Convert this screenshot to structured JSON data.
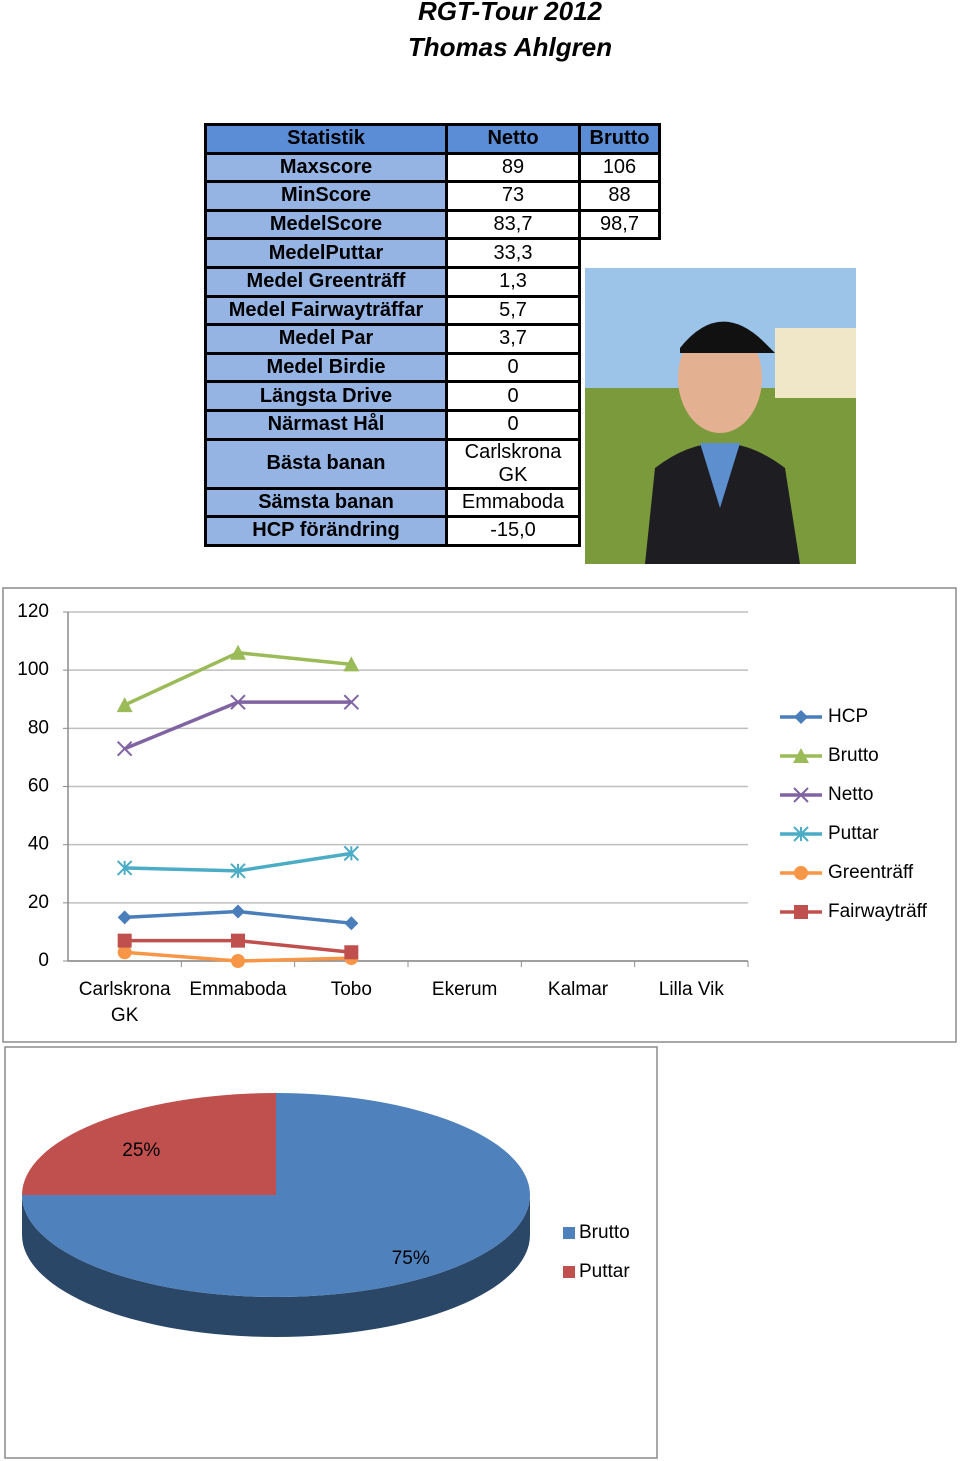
{
  "header": {
    "title": "RGT-Tour 2012",
    "subtitle": "Thomas Ahlgren"
  },
  "table": {
    "header": [
      "Statistik",
      "Netto",
      "Brutto"
    ],
    "rows": [
      [
        "Maxscore",
        "89",
        "106"
      ],
      [
        "MinScore",
        "73",
        "88"
      ],
      [
        "MedelScore",
        "83,7",
        "98,7"
      ],
      [
        "MedelPuttar",
        "33,3"
      ],
      [
        "Medel Greenträff",
        "1,3"
      ],
      [
        "Medel Fairwayträffar",
        "5,7"
      ],
      [
        "Medel Par",
        "3,7"
      ],
      [
        "Medel Birdie",
        "0"
      ],
      [
        "Längsta Drive",
        "0"
      ],
      [
        "Närmast Hål",
        "0"
      ],
      [
        "Bästa banan",
        "Carlskrona GK"
      ],
      [
        "Sämsta banan",
        "Emmaboda"
      ],
      [
        "HCP förändring",
        "-15,0"
      ]
    ]
  },
  "chart_data": [
    {
      "type": "line",
      "categories": [
        "Carlskrona GK",
        "Emmaboda",
        "Tobo",
        "Ekerum",
        "Kalmar",
        "Lilla Vik"
      ],
      "series": [
        {
          "name": "HCP",
          "color": "#4a7ebb",
          "marker": "diamond",
          "values": [
            15,
            17,
            13,
            null,
            null,
            null
          ]
        },
        {
          "name": "Brutto",
          "color": "#9bbb59",
          "marker": "triangle",
          "values": [
            88,
            106,
            102,
            null,
            null,
            null
          ]
        },
        {
          "name": "Netto",
          "color": "#8064a2",
          "marker": "x",
          "values": [
            73,
            89,
            89,
            null,
            null,
            null
          ]
        },
        {
          "name": "Puttar",
          "color": "#4bacc6",
          "marker": "asterisk",
          "values": [
            32,
            31,
            37,
            null,
            null,
            null
          ]
        },
        {
          "name": "Greenträff",
          "color": "#f79646",
          "marker": "circle",
          "values": [
            3,
            0,
            1,
            null,
            null,
            null
          ]
        },
        {
          "name": "Fairwayträff",
          "color": "#c0504d",
          "marker": "square",
          "values": [
            7,
            7,
            3,
            null,
            null,
            null
          ]
        }
      ],
      "ylim": [
        0,
        120
      ],
      "yticks": [
        0,
        20,
        40,
        60,
        80,
        100,
        120
      ],
      "grid": true,
      "legend": "right"
    },
    {
      "type": "pie3d",
      "categories": [
        "Brutto",
        "Puttar"
      ],
      "values": [
        75,
        25
      ],
      "value_labels": [
        "75%",
        "25%"
      ],
      "colors": [
        "#4f81bd",
        "#c0504d"
      ],
      "legend": "right"
    }
  ]
}
